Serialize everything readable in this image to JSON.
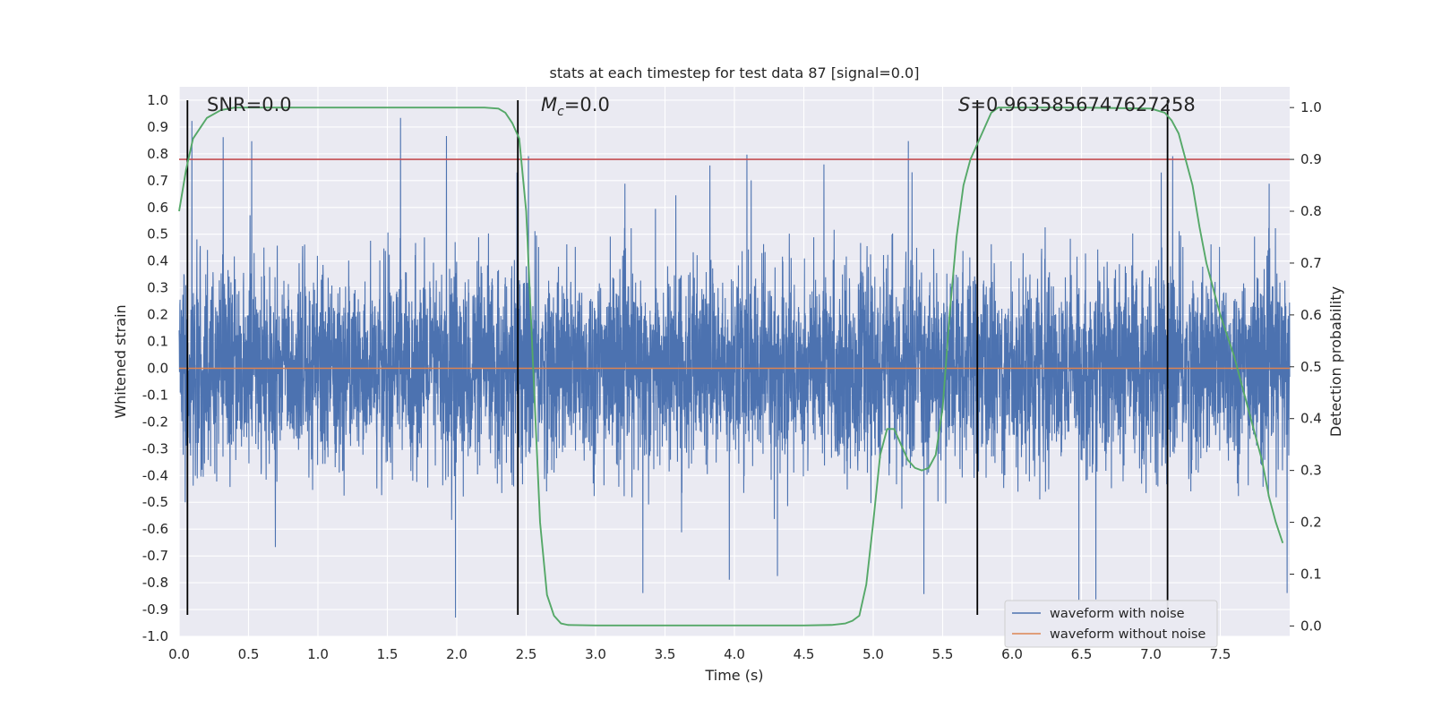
{
  "chart_data": {
    "type": "line",
    "title": "stats at each timestep for test data 87 [signal=0.0]",
    "xlabel": "Time (s)",
    "ylabel": "Whitened strain",
    "y2label": "Detection probability",
    "xlim": [
      0.0,
      8.0
    ],
    "ylim": [
      -1.0,
      1.05
    ],
    "y2lim": [
      -0.02,
      1.04
    ],
    "x_ticks": [
      "0.0",
      "0.5",
      "1.0",
      "1.5",
      "2.0",
      "2.5",
      "3.0",
      "3.5",
      "4.0",
      "4.5",
      "5.0",
      "5.5",
      "6.0",
      "6.5",
      "7.0",
      "7.5"
    ],
    "x_tick_values": [
      0.0,
      0.5,
      1.0,
      1.5,
      2.0,
      2.5,
      3.0,
      3.5,
      4.0,
      4.5,
      5.0,
      5.5,
      6.0,
      6.5,
      7.0,
      7.5
    ],
    "y_ticks": [
      "1.0",
      "0.9",
      "0.8",
      "0.7",
      "0.6",
      "0.5",
      "0.4",
      "0.3",
      "0.2",
      "0.1",
      "0.0",
      "-0.1",
      "-0.2",
      "-0.3",
      "-0.4",
      "-0.5",
      "-0.6",
      "-0.7",
      "-0.8",
      "-0.9",
      "-1.0"
    ],
    "y_tick_values": [
      1.0,
      0.9,
      0.8,
      0.7,
      0.6,
      0.5,
      0.4,
      0.3,
      0.2,
      0.1,
      0.0,
      -0.1,
      -0.2,
      -0.3,
      -0.4,
      -0.5,
      -0.6,
      -0.7,
      -0.8,
      -0.9,
      -1.0
    ],
    "y2_ticks": [
      "1.0",
      "0.9",
      "0.8",
      "0.7",
      "0.6",
      "0.5",
      "0.4",
      "0.3",
      "0.2",
      "0.1",
      "0.0"
    ],
    "y2_tick_values": [
      1.0,
      0.9,
      0.8,
      0.7,
      0.6,
      0.5,
      0.4,
      0.3,
      0.2,
      0.1,
      0.0
    ],
    "annotations": {
      "snr": "SNR=0.0",
      "mc_symbol": "M",
      "mc_sub": "c",
      "mc_value": "=0.0",
      "s_symbol": "S",
      "s_value": "=0.9635856747627258"
    },
    "legend": {
      "location": "lower-right",
      "entries": [
        "waveform with noise",
        "waveform without noise"
      ]
    },
    "series": [
      {
        "name": "waveform with noise",
        "axis": "left",
        "color": "#4c72b0",
        "description": "whitened noise, roughly within ±0.5 with spikes reaching ±0.95"
      },
      {
        "name": "waveform without noise",
        "axis": "left",
        "color": "#dd8452",
        "x": [
          0.0,
          8.0
        ],
        "y": [
          0.0,
          0.0
        ]
      },
      {
        "name": "detection probability",
        "axis": "right",
        "color": "#55a868",
        "x": [
          0.0,
          0.05,
          0.1,
          0.15,
          0.2,
          0.3,
          0.4,
          0.5,
          1.0,
          1.5,
          2.0,
          2.2,
          2.3,
          2.35,
          2.4,
          2.45,
          2.5,
          2.55,
          2.6,
          2.65,
          2.7,
          2.75,
          2.8,
          3.0,
          4.0,
          4.5,
          4.7,
          4.8,
          4.85,
          4.9,
          4.95,
          5.0,
          5.05,
          5.1,
          5.15,
          5.2,
          5.25,
          5.3,
          5.35,
          5.4,
          5.45,
          5.5,
          5.55,
          5.6,
          5.65,
          5.7,
          5.75,
          5.8,
          5.85,
          5.9,
          5.95,
          6.0,
          6.5,
          7.0,
          7.1,
          7.15,
          7.2,
          7.25,
          7.3,
          7.35,
          7.4,
          7.5,
          7.6,
          7.7,
          7.8,
          7.85,
          7.9,
          7.95
        ],
        "y": [
          0.8,
          0.88,
          0.94,
          0.96,
          0.98,
          0.995,
          1.0,
          1.0,
          1.0,
          1.0,
          1.0,
          1.0,
          0.998,
          0.99,
          0.97,
          0.94,
          0.8,
          0.5,
          0.2,
          0.06,
          0.02,
          0.005,
          0.002,
          0.001,
          0.001,
          0.001,
          0.002,
          0.005,
          0.01,
          0.02,
          0.08,
          0.2,
          0.33,
          0.38,
          0.38,
          0.35,
          0.32,
          0.305,
          0.3,
          0.305,
          0.33,
          0.42,
          0.6,
          0.75,
          0.85,
          0.9,
          0.93,
          0.96,
          0.99,
          1.0,
          1.0,
          1.0,
          1.0,
          0.998,
          0.99,
          0.975,
          0.95,
          0.9,
          0.85,
          0.77,
          0.7,
          0.6,
          0.52,
          0.42,
          0.32,
          0.25,
          0.2,
          0.16
        ]
      },
      {
        "name": "threshold",
        "axis": "right",
        "color": "#c44e52",
        "y": 0.9
      }
    ],
    "vertical_markers_x": [
      0.06,
      2.44,
      5.75,
      7.12
    ]
  }
}
